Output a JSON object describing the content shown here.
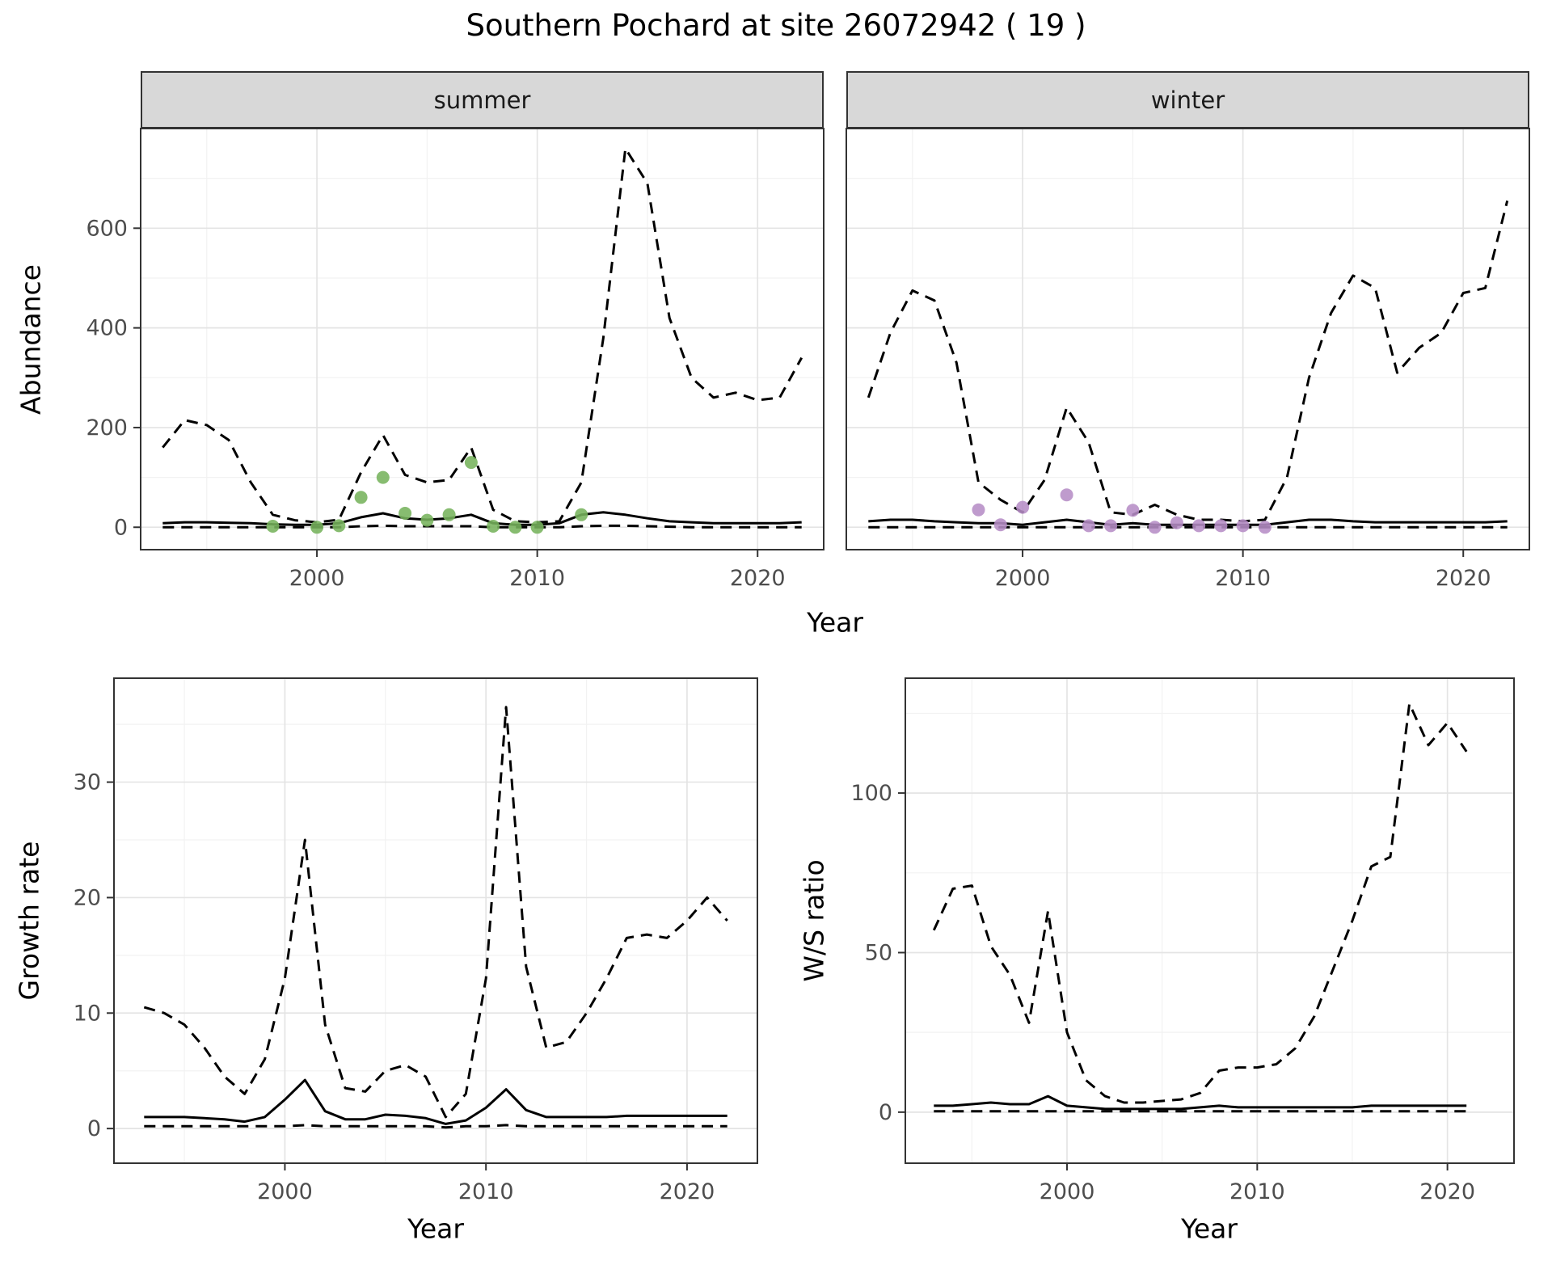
{
  "title": "Southern Pochard at site 26072942 ( 19 )",
  "labels": {
    "x_axis_top": "Year",
    "x_axis_growth": "Year",
    "x_axis_ws": "Year",
    "y_axis_abundance": "Abundance",
    "y_axis_growth": "Growth rate",
    "y_axis_ws": "W/S ratio",
    "facet_summer": "summer",
    "facet_winter": "winter"
  },
  "colors": {
    "line": "#000000",
    "grid_major": "#e4e4e4",
    "grid_minor": "#f2f2f2",
    "panel_border": "#333333",
    "strip_bg": "#d8d8d8",
    "tick_label": "#4d4d4d",
    "summer_points": "#76b35c",
    "winter_points": "#b68dc6"
  },
  "chart_data": [
    {
      "id": "summer_abundance",
      "type": "line",
      "facet": "summer",
      "title": "summer",
      "xlabel": "Year",
      "ylabel": "Abundance",
      "xlim": [
        1992,
        2023
      ],
      "ylim": [
        -45,
        800
      ],
      "xticks": [
        2000,
        2010,
        2020
      ],
      "yticks": [
        0,
        200,
        400,
        600
      ],
      "grid": true,
      "legend": "none",
      "x": [
        1993,
        1994,
        1995,
        1996,
        1997,
        1998,
        1999,
        2000,
        2001,
        2002,
        2003,
        2004,
        2005,
        2006,
        2007,
        2008,
        2009,
        2010,
        2011,
        2012,
        2013,
        2014,
        2015,
        2016,
        2017,
        2018,
        2019,
        2020,
        2021,
        2022
      ],
      "series": [
        {
          "name": "upper_ci",
          "style": "dashed",
          "values": [
            160,
            215,
            205,
            175,
            90,
            25,
            14,
            10,
            15,
            110,
            185,
            105,
            90,
            95,
            160,
            35,
            12,
            10,
            12,
            90,
            380,
            760,
            690,
            420,
            300,
            260,
            270,
            255,
            260,
            340
          ]
        },
        {
          "name": "median",
          "style": "solid",
          "values": [
            8,
            10,
            10,
            9,
            8,
            6,
            5,
            5,
            8,
            20,
            28,
            18,
            15,
            18,
            25,
            8,
            5,
            5,
            8,
            25,
            30,
            25,
            18,
            12,
            10,
            8,
            8,
            8,
            8,
            10
          ]
        },
        {
          "name": "lower_ci",
          "style": "dashed",
          "values": [
            0,
            0,
            0,
            0,
            0,
            0,
            0,
            0,
            0,
            2,
            3,
            2,
            2,
            2,
            2,
            0,
            0,
            0,
            0,
            2,
            3,
            3,
            2,
            1,
            0,
            0,
            0,
            0,
            0,
            0
          ]
        }
      ],
      "points": {
        "name": "observed_counts_summer",
        "color_key": "summer_points",
        "x": [
          1998,
          2000,
          2001,
          2002,
          2003,
          2004,
          2005,
          2006,
          2007,
          2008,
          2009,
          2010,
          2012
        ],
        "y": [
          2,
          0,
          3,
          60,
          100,
          28,
          14,
          25,
          130,
          2,
          0,
          0,
          25
        ]
      }
    },
    {
      "id": "winter_abundance",
      "type": "line",
      "facet": "winter",
      "title": "winter",
      "xlabel": "Year",
      "ylabel": "Abundance",
      "xlim": [
        1992,
        2023
      ],
      "ylim": [
        -45,
        800
      ],
      "xticks": [
        2000,
        2010,
        2020
      ],
      "yticks": [
        0,
        200,
        400,
        600
      ],
      "grid": true,
      "legend": "none",
      "x": [
        1993,
        1994,
        1995,
        1996,
        1997,
        1998,
        1999,
        2000,
        2001,
        2002,
        2003,
        2004,
        2005,
        2006,
        2007,
        2008,
        2009,
        2010,
        2011,
        2012,
        2013,
        2014,
        2015,
        2016,
        2017,
        2018,
        2019,
        2020,
        2021,
        2022
      ],
      "series": [
        {
          "name": "upper_ci",
          "style": "dashed",
          "values": [
            260,
            390,
            475,
            455,
            330,
            90,
            55,
            30,
            95,
            240,
            170,
            30,
            25,
            45,
            25,
            15,
            15,
            12,
            15,
            100,
            300,
            430,
            505,
            480,
            310,
            360,
            390,
            470,
            480,
            655
          ]
        },
        {
          "name": "median",
          "style": "solid",
          "values": [
            12,
            15,
            15,
            12,
            10,
            8,
            8,
            5,
            10,
            15,
            10,
            5,
            8,
            5,
            5,
            5,
            5,
            5,
            5,
            10,
            15,
            15,
            12,
            10,
            10,
            10,
            10,
            10,
            10,
            12
          ]
        },
        {
          "name": "lower_ci",
          "style": "dashed",
          "values": [
            0,
            0,
            0,
            0,
            0,
            0,
            0,
            0,
            0,
            0,
            0,
            0,
            0,
            0,
            0,
            0,
            0,
            0,
            0,
            0,
            0,
            0,
            0,
            0,
            0,
            0,
            0,
            0,
            0,
            0
          ]
        }
      ],
      "points": {
        "name": "observed_counts_winter",
        "color_key": "winter_points",
        "x": [
          1998,
          1999,
          2000,
          2002,
          2003,
          2004,
          2005,
          2006,
          2007,
          2008,
          2009,
          2010,
          2011
        ],
        "y": [
          35,
          5,
          40,
          65,
          3,
          3,
          34,
          0,
          9,
          3,
          3,
          3,
          0
        ]
      }
    },
    {
      "id": "growth_rate",
      "type": "line",
      "facet": null,
      "title": "",
      "xlabel": "Year",
      "ylabel": "Growth rate",
      "xlim": [
        1991.5,
        2023.5
      ],
      "ylim": [
        -3,
        39
      ],
      "xticks": [
        2000,
        2010,
        2020
      ],
      "yticks": [
        0,
        10,
        20,
        30
      ],
      "grid": true,
      "legend": "none",
      "x": [
        1993,
        1994,
        1995,
        1996,
        1997,
        1998,
        1999,
        2000,
        2001,
        2002,
        2003,
        2004,
        2005,
        2006,
        2007,
        2008,
        2009,
        2010,
        2011,
        2012,
        2013,
        2014,
        2015,
        2016,
        2017,
        2018,
        2019,
        2020,
        2021,
        2022
      ],
      "series": [
        {
          "name": "upper_ci",
          "style": "dashed",
          "values": [
            10.5,
            10,
            9,
            7,
            4.5,
            3,
            6,
            13,
            25,
            9,
            3.5,
            3.2,
            5,
            5.5,
            4.5,
            1,
            3,
            13,
            36.5,
            14,
            7,
            7.5,
            10,
            13,
            16.5,
            16.8,
            16.5,
            18,
            20,
            18
          ]
        },
        {
          "name": "median",
          "style": "solid",
          "values": [
            1,
            1,
            1,
            0.9,
            0.8,
            0.6,
            1,
            2.5,
            4.2,
            1.5,
            0.8,
            0.8,
            1.2,
            1.1,
            0.9,
            0.4,
            0.7,
            1.8,
            3.4,
            1.6,
            1,
            1,
            1,
            1,
            1.1,
            1.1,
            1.1,
            1.1,
            1.1,
            1.1
          ]
        },
        {
          "name": "lower_ci",
          "style": "dashed",
          "values": [
            0.2,
            0.2,
            0.2,
            0.2,
            0.2,
            0.2,
            0.2,
            0.2,
            0.3,
            0.2,
            0.2,
            0.2,
            0.2,
            0.2,
            0.2,
            0.1,
            0.2,
            0.2,
            0.3,
            0.2,
            0.2,
            0.2,
            0.2,
            0.2,
            0.2,
            0.2,
            0.2,
            0.2,
            0.2,
            0.2
          ]
        }
      ],
      "points": null
    },
    {
      "id": "ws_ratio",
      "type": "line",
      "facet": null,
      "title": "",
      "xlabel": "Year",
      "ylabel": "W/S ratio",
      "xlim": [
        1991.5,
        2023.5
      ],
      "ylim": [
        -16,
        136
      ],
      "xticks": [
        2000,
        2010,
        2020
      ],
      "yticks": [
        0,
        50,
        100
      ],
      "grid": true,
      "legend": "none",
      "x": [
        1993,
        1994,
        1995,
        1996,
        1997,
        1998,
        1999,
        2000,
        2001,
        2002,
        2003,
        2004,
        2005,
        2006,
        2007,
        2008,
        2009,
        2010,
        2011,
        2012,
        2013,
        2014,
        2015,
        2016,
        2017,
        2018,
        2019,
        2020,
        2021
      ],
      "series": [
        {
          "name": "upper_ci",
          "style": "dashed",
          "values": [
            57,
            70,
            71,
            52,
            43,
            28,
            63,
            25,
            10,
            5,
            3,
            3,
            3.5,
            4,
            6,
            13,
            14,
            14,
            15,
            20,
            30,
            45,
            60,
            77,
            80,
            128,
            115,
            122,
            113
          ]
        },
        {
          "name": "median",
          "style": "solid",
          "values": [
            2,
            2,
            2.5,
            3,
            2.5,
            2.5,
            5,
            2,
            1.5,
            1,
            1,
            1,
            1,
            1,
            1.5,
            2,
            1.5,
            1.5,
            1.5,
            1.5,
            1.5,
            1.5,
            1.5,
            2,
            2,
            2,
            2,
            2,
            2
          ]
        },
        {
          "name": "lower_ci",
          "style": "dashed",
          "values": [
            0.3,
            0.3,
            0.3,
            0.3,
            0.3,
            0.3,
            0.3,
            0.3,
            0.3,
            0.3,
            0.3,
            0.3,
            0.3,
            0.3,
            0.3,
            0.3,
            0.3,
            0.3,
            0.3,
            0.3,
            0.3,
            0.3,
            0.3,
            0.3,
            0.3,
            0.3,
            0.3,
            0.3,
            0.3
          ]
        }
      ],
      "points": null
    }
  ]
}
